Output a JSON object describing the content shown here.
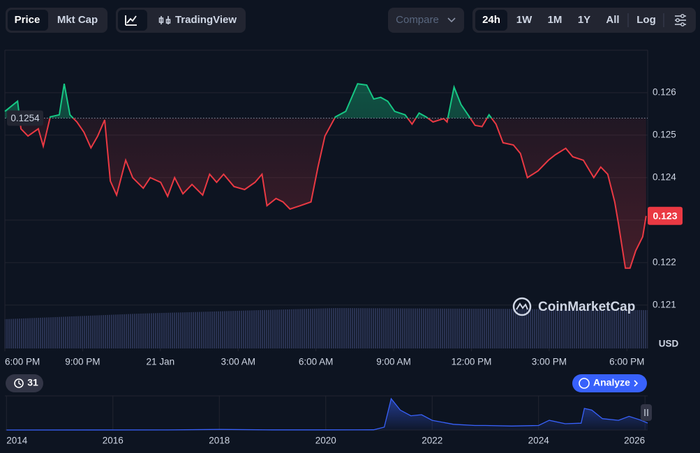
{
  "toolbar": {
    "view_tabs": [
      "Price",
      "Mkt Cap"
    ],
    "chart_tabs": [
      "TradingView"
    ],
    "compare": "Compare",
    "ranges": [
      "24h",
      "1W",
      "1M",
      "1Y",
      "All"
    ],
    "log": "Log"
  },
  "chart_data": {
    "type": "line",
    "currency": "USD",
    "watermark": "CoinMarketCap",
    "up_color": "#16c784",
    "down_color": "#ea3943",
    "grid": true,
    "x": [
      0,
      0.49,
      0.62,
      0.89,
      1.29,
      1.48,
      1.75,
      2.1,
      2.29,
      2.51,
      2.78,
      3.05,
      3.32,
      3.58,
      3.85,
      4.07,
      4.31,
      4.66,
      4.93,
      5.34,
      5.61,
      6.01,
      6.28,
      6.55,
      6.87,
      7.22,
      7.63,
      7.9,
      8.17,
      8.44,
      8.84,
      9.25,
      9.65,
      9.92,
      10.11,
      10.46,
      10.73,
      11.0,
      11.4,
      11.81,
      12.08,
      12.35,
      12.75,
      13.15,
      13.61,
      13.96,
      14.23,
      14.5,
      14.77,
      15.04,
      15.44,
      15.71,
      15.98,
      16.25,
      16.52,
      16.93,
      17.06,
      17.33,
      17.6,
      17.87,
      18.14,
      18.41,
      18.68,
      18.95,
      19.22,
      19.62,
      19.89,
      20.16,
      20.57,
      20.97,
      21.24,
      21.64,
      21.91,
      22.32,
      22.72,
      22.99,
      23.26,
      23.53,
      23.67,
      23.94,
      24.12,
      24.34,
      24.61,
      24.74
    ],
    "values": [
      0.12556,
      0.1258,
      0.12515,
      0.12498,
      0.12515,
      0.12474,
      0.12543,
      0.12548,
      0.12621,
      0.12548,
      0.12531,
      0.12507,
      0.1247,
      0.12498,
      0.12536,
      0.12392,
      0.12359,
      0.12441,
      0.124,
      0.12375,
      0.124,
      0.12389,
      0.12356,
      0.124,
      0.12362,
      0.12384,
      0.12359,
      0.12408,
      0.12389,
      0.12408,
      0.12379,
      0.12372,
      0.12389,
      0.12408,
      0.12334,
      0.12351,
      0.12343,
      0.12326,
      0.12334,
      0.12343,
      0.12425,
      0.12498,
      0.12543,
      0.12556,
      0.12621,
      0.12618,
      0.12585,
      0.12589,
      0.1258,
      0.12556,
      0.12548,
      0.12526,
      0.12552,
      0.12543,
      0.12531,
      0.12539,
      0.12531,
      0.12613,
      0.12572,
      0.12548,
      0.12523,
      0.1252,
      0.12548,
      0.12526,
      0.12482,
      0.12477,
      0.12457,
      0.124,
      0.12416,
      0.12441,
      0.12454,
      0.12469,
      0.12449,
      0.12441,
      0.124,
      0.12425,
      0.12408,
      0.12343,
      0.12293,
      0.12187,
      0.12187,
      0.12228,
      0.12261,
      0.1231
    ],
    "last_value_label": "0.123",
    "reference": 0.1254,
    "xlim": [
      0,
      24.8
    ],
    "ylim": [
      0.11998,
      0.127
    ],
    "yticks": [
      0.121,
      0.122,
      0.123,
      0.124,
      0.125,
      0.126
    ],
    "xticks": [
      {
        "value": 0,
        "label": "6:00 PM"
      },
      {
        "value": 3,
        "label": "9:00 PM"
      },
      {
        "value": 6,
        "label": "21 Jan"
      },
      {
        "value": 9,
        "label": "3:00 AM"
      },
      {
        "value": 12,
        "label": "6:00 AM"
      },
      {
        "value": 15,
        "label": "9:00 AM"
      },
      {
        "value": 18,
        "label": "12:00 PM"
      },
      {
        "value": 21,
        "label": "3:00 PM"
      },
      {
        "value": 24,
        "label": "6:00 PM"
      }
    ]
  },
  "overview": {
    "type": "line",
    "color": "#3861fb",
    "x": [
      2014,
      2017,
      2018,
      2019,
      2020,
      2020.9,
      2021.1,
      2021.23,
      2021.4,
      2021.6,
      2021.8,
      2022.0,
      2022.4,
      2022.8,
      2023.0,
      2023.5,
      2024.0,
      2024.2,
      2024.5,
      2024.8,
      2024.86,
      2025.0,
      2025.2,
      2025.5,
      2025.7,
      2025.9,
      2026.05
    ],
    "values": [
      0.0005,
      0.001,
      0.01,
      0.002,
      0.002,
      0.004,
      0.05,
      0.55,
      0.35,
      0.25,
      0.27,
      0.17,
      0.1,
      0.08,
      0.08,
      0.07,
      0.08,
      0.17,
      0.11,
      0.12,
      0.38,
      0.35,
      0.2,
      0.17,
      0.24,
      0.18,
      0.123
    ],
    "xlim": [
      2013.97,
      2026.05
    ],
    "ylim": [
      0,
      0.6
    ],
    "xticks": [
      2014,
      2016,
      2018,
      2020,
      2022,
      2024,
      2026
    ]
  },
  "footer": {
    "alerts": 31,
    "analyze": "Analyze"
  }
}
